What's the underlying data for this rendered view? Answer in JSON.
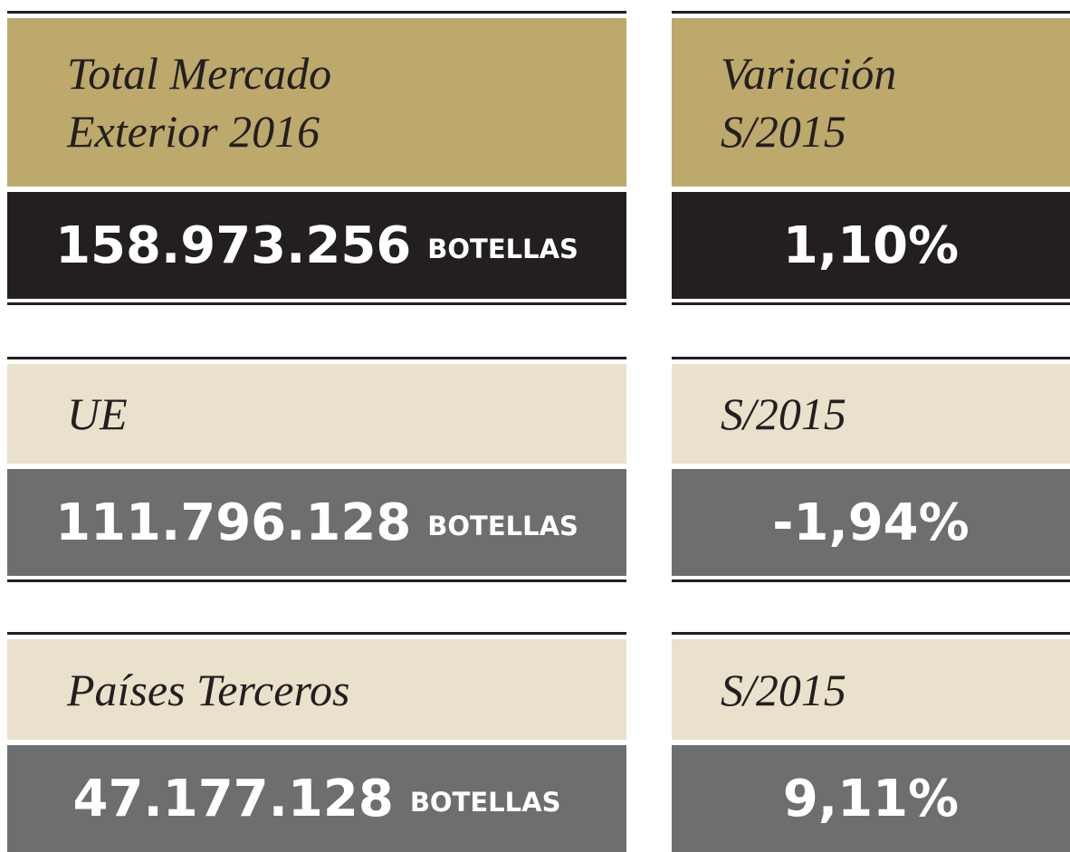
{
  "rows": [
    {
      "label": [
        "Total Mercado",
        "Exterior 2016"
      ],
      "value": "158.973.256",
      "unit": "BOTELLAS",
      "variation_label": [
        "Variación",
        "S/2015"
      ],
      "variation": "1,10%"
    },
    {
      "label": [
        "UE"
      ],
      "value": "111.796.128",
      "unit": "BOTELLAS",
      "variation_label": [
        "S/2015"
      ],
      "variation": "-1,94%"
    },
    {
      "label": [
        "Países Terceros"
      ],
      "value": "47.177.128",
      "unit": "BOTELLAS",
      "variation_label": [
        "S/2015"
      ],
      "variation": "9,11%"
    }
  ]
}
